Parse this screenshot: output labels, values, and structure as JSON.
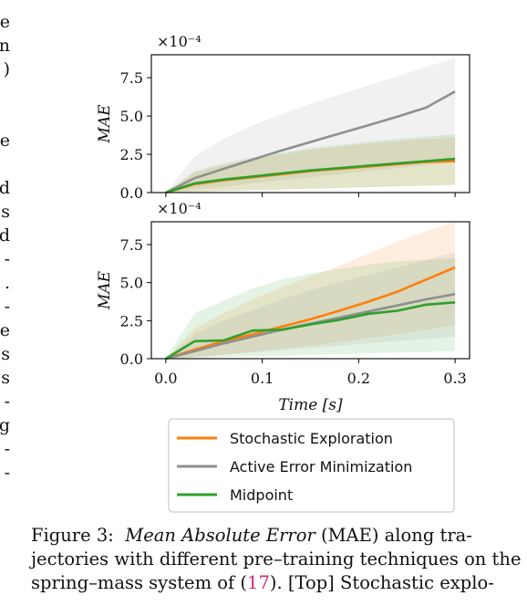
{
  "left_margin_fragments": [
    "e",
    "n",
    ")",
    "e",
    "d",
    "s",
    "d",
    "-",
    ".",
    "-",
    "e",
    "s",
    "s",
    "-",
    "g",
    "-",
    "-"
  ],
  "chart_data": [
    {
      "type": "line",
      "panel": "top",
      "scale_label": "×10⁻⁴",
      "ylabel": "MAE",
      "xlabel": "",
      "xlim": [
        -0.015,
        0.315
      ],
      "ylim": [
        0.0,
        9.0
      ],
      "yticks": [
        0.0,
        2.5,
        5.0,
        7.5
      ],
      "ytick_labels": [
        "0.0",
        "2.5",
        "5.0",
        "7.5"
      ],
      "xticks": [
        0.0,
        0.1,
        0.2,
        0.3
      ],
      "xtick_labels": [],
      "series": [
        {
          "name": "Active Error Minimization",
          "color": "#8f8f8f",
          "x": [
            0,
            0.03,
            0.06,
            0.09,
            0.12,
            0.15,
            0.18,
            0.21,
            0.24,
            0.27,
            0.3
          ],
          "y": [
            0,
            0.95,
            1.55,
            2.15,
            2.75,
            3.3,
            3.85,
            4.4,
            4.95,
            5.55,
            6.6
          ],
          "lower": [
            0,
            0.2,
            0.4,
            0.6,
            0.8,
            1.0,
            1.2,
            1.4,
            1.6,
            1.8,
            2.0
          ],
          "upper": [
            0,
            2.4,
            3.5,
            4.4,
            5.1,
            5.8,
            6.4,
            7.0,
            7.6,
            8.2,
            8.8
          ]
        },
        {
          "name": "Stochastic Exploration",
          "color": "#ff7f0e",
          "x": [
            0,
            0.03,
            0.06,
            0.09,
            0.12,
            0.15,
            0.18,
            0.21,
            0.24,
            0.27,
            0.3
          ],
          "y": [
            0,
            0.55,
            0.8,
            1.0,
            1.2,
            1.4,
            1.55,
            1.7,
            1.85,
            2.0,
            2.05
          ],
          "lower": [
            0,
            0.05,
            0.1,
            0.15,
            0.2,
            0.25,
            0.3,
            0.35,
            0.4,
            0.45,
            0.5
          ],
          "upper": [
            0,
            1.3,
            1.8,
            2.2,
            2.5,
            2.8,
            3.0,
            3.2,
            3.35,
            3.5,
            3.6
          ]
        },
        {
          "name": "Midpoint",
          "color": "#2ca02c",
          "x": [
            0,
            0.03,
            0.06,
            0.09,
            0.12,
            0.15,
            0.18,
            0.21,
            0.24,
            0.27,
            0.3
          ],
          "y": [
            0,
            0.6,
            0.85,
            1.05,
            1.25,
            1.45,
            1.6,
            1.75,
            1.9,
            2.05,
            2.2
          ],
          "lower": [
            0,
            0.05,
            0.1,
            0.15,
            0.2,
            0.25,
            0.3,
            0.35,
            0.4,
            0.45,
            0.5
          ],
          "upper": [
            0,
            1.4,
            1.9,
            2.3,
            2.6,
            2.9,
            3.1,
            3.3,
            3.5,
            3.65,
            3.8
          ]
        }
      ]
    },
    {
      "type": "line",
      "panel": "bottom",
      "scale_label": "×10⁻⁴",
      "ylabel": "MAE",
      "xlabel": "Time [s]",
      "xlim": [
        -0.015,
        0.315
      ],
      "ylim": [
        0.0,
        9.0
      ],
      "yticks": [
        0.0,
        2.5,
        5.0,
        7.5
      ],
      "ytick_labels": [
        "0.0",
        "2.5",
        "5.0",
        "7.5"
      ],
      "xticks": [
        0.0,
        0.1,
        0.2,
        0.3
      ],
      "xtick_labels": [
        "0.0",
        "0.1",
        "0.2",
        "0.3"
      ],
      "series": [
        {
          "name": "Stochastic Exploration",
          "color": "#ff7f0e",
          "x": [
            0,
            0.03,
            0.06,
            0.09,
            0.12,
            0.15,
            0.18,
            0.21,
            0.24,
            0.27,
            0.3
          ],
          "y": [
            0,
            0.6,
            1.15,
            1.6,
            2.1,
            2.6,
            3.15,
            3.75,
            4.4,
            5.2,
            6.0
          ],
          "lower": [
            0,
            0.1,
            0.25,
            0.45,
            0.65,
            0.85,
            1.1,
            1.35,
            1.6,
            1.9,
            2.2
          ],
          "upper": [
            0,
            2.0,
            3.0,
            3.9,
            4.7,
            5.4,
            6.1,
            6.9,
            7.7,
            8.4,
            9.0
          ]
        },
        {
          "name": "Active Error Minimization",
          "color": "#8f8f8f",
          "x": [
            0,
            0.03,
            0.06,
            0.09,
            0.12,
            0.15,
            0.18,
            0.21,
            0.24,
            0.27,
            0.3
          ],
          "y": [
            0,
            0.5,
            1.0,
            1.45,
            1.9,
            2.3,
            2.7,
            3.1,
            3.5,
            3.9,
            4.25
          ],
          "lower": [
            0,
            0.1,
            0.25,
            0.4,
            0.55,
            0.7,
            0.85,
            1.0,
            1.15,
            1.3,
            1.45
          ],
          "upper": [
            0,
            1.6,
            2.5,
            3.2,
            3.9,
            4.5,
            5.0,
            5.5,
            6.0,
            6.5,
            7.0
          ]
        },
        {
          "name": "Midpoint",
          "color": "#2ca02c",
          "x": [
            0,
            0.03,
            0.06,
            0.09,
            0.12,
            0.15,
            0.18,
            0.21,
            0.24,
            0.27,
            0.3
          ],
          "y": [
            0,
            1.15,
            1.2,
            1.85,
            1.9,
            2.25,
            2.55,
            2.95,
            3.15,
            3.55,
            3.7
          ],
          "lower": [
            0,
            0.05,
            0.1,
            0.15,
            0.2,
            0.25,
            0.3,
            0.35,
            0.4,
            0.45,
            0.5
          ],
          "upper": [
            0,
            3.0,
            3.8,
            4.6,
            5.2,
            5.6,
            5.9,
            6.2,
            6.4,
            6.5,
            6.6
          ]
        }
      ]
    }
  ],
  "legend": {
    "placement": "below",
    "entries": [
      {
        "label": "Stochastic Exploration",
        "color": "#ff7f0e"
      },
      {
        "label": "Active Error Minimization",
        "color": "#8f8f8f"
      },
      {
        "label": "Midpoint",
        "color": "#2ca02c"
      }
    ]
  },
  "caption": {
    "label": "Figure 3:",
    "title_italic": "Mean Absolute Error",
    "line1_rest": " (MAE) along tra-",
    "line2": "jectories with different pre–training techniques on the",
    "line3_pre": "spring–mass system of (",
    "ref": "17",
    "line3_post": ").  [Top] Stochastic explo-"
  }
}
